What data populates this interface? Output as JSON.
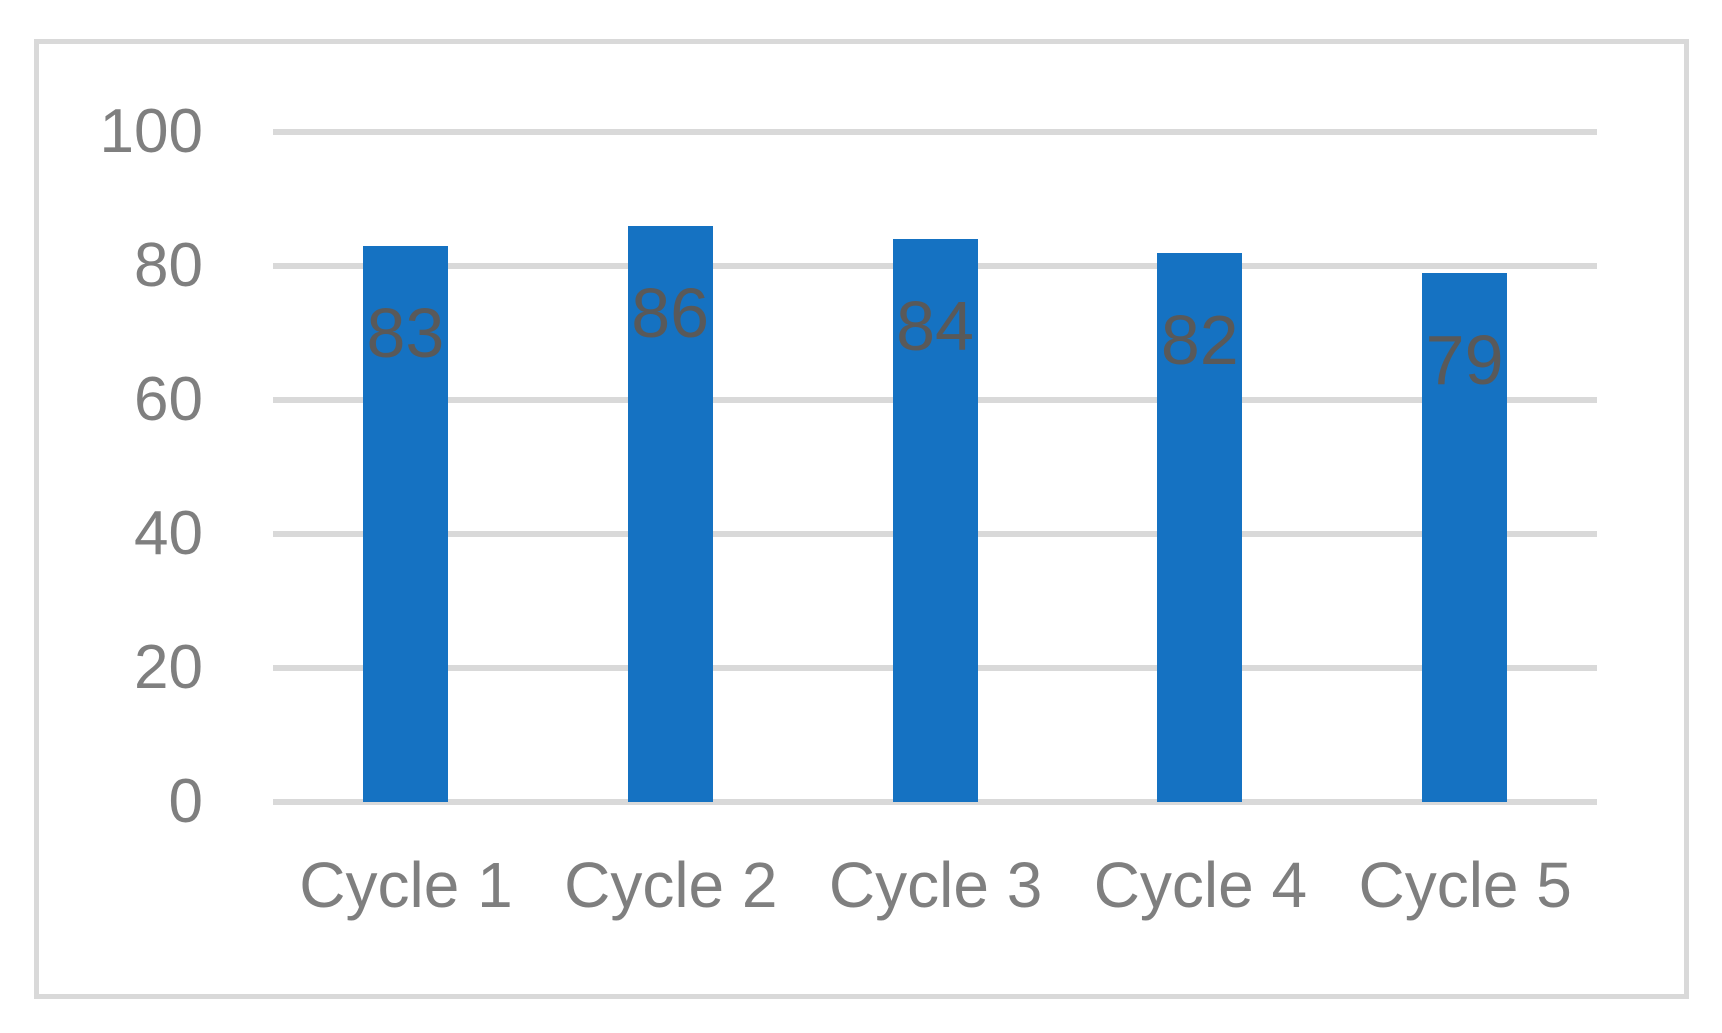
{
  "chart_data": {
    "type": "bar",
    "title": "",
    "xlabel": "",
    "ylabel": "",
    "categories": [
      "Cycle 1",
      "Cycle 2",
      "Cycle 3",
      "Cycle 4",
      "Cycle 5"
    ],
    "values": [
      83,
      86,
      84,
      82,
      79
    ],
    "data_labels": [
      "83",
      "86",
      "84",
      "82",
      "79"
    ],
    "data_label_position": "inside-end",
    "ytick_labels": [
      "0",
      "20",
      "40",
      "60",
      "80",
      "100"
    ],
    "ytick_values": [
      0,
      20,
      40,
      60,
      80,
      100
    ],
    "ylim": [
      0,
      100
    ],
    "grid": "horizontal",
    "legend": "none",
    "colors": {
      "bar": "#1572c2",
      "gridline": "#d9d9d9",
      "frame_border": "#d9d9d9",
      "axis_text": "#7f7f7f",
      "data_label_text": "#595959",
      "background": "#ffffff"
    }
  }
}
